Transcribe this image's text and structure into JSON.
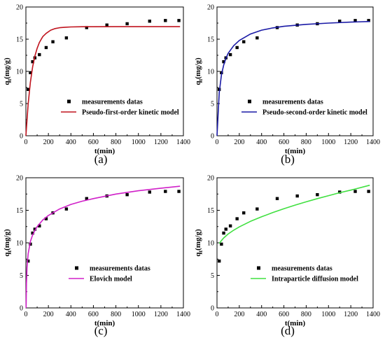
{
  "chart_data": [
    {
      "type": "scatter",
      "panel_label": "(a)",
      "xlabel": "t(min)",
      "ylabel": "q",
      "ylabel_sub": "t",
      "ylabel_unit": "(mg/g)",
      "xlim": [
        0,
        1400
      ],
      "ylim": [
        0,
        20
      ],
      "xticks": [
        "0",
        "200",
        "400",
        "600",
        "800",
        "1000",
        "1200",
        "1400"
      ],
      "yticks": [
        "0",
        "5",
        "10",
        "15",
        "20"
      ],
      "legend_position": "center-right",
      "series": [
        {
          "name": "measurements datas",
          "kind": "points",
          "color": "#000000",
          "x": [
            20,
            40,
            60,
            80,
            120,
            180,
            240,
            360,
            540,
            720,
            900,
            1100,
            1240,
            1360
          ],
          "y": [
            7.2,
            9.8,
            11.5,
            12.1,
            12.6,
            13.7,
            14.6,
            15.2,
            16.8,
            17.2,
            17.4,
            17.8,
            17.9,
            17.9
          ]
        },
        {
          "name": "Pseudo-first-order kinetic model",
          "kind": "line",
          "color": "#c0141e",
          "x": [
            0,
            20,
            40,
            60,
            80,
            100,
            120,
            150,
            180,
            220,
            260,
            300,
            350,
            400,
            500,
            600,
            800,
            1000,
            1200,
            1370
          ],
          "y": [
            0,
            4.9,
            8.3,
            10.7,
            12.4,
            13.6,
            14.5,
            15.4,
            15.9,
            16.4,
            16.65,
            16.78,
            16.86,
            16.9,
            16.93,
            16.94,
            16.95,
            16.95,
            16.95,
            16.95
          ]
        }
      ]
    },
    {
      "type": "scatter",
      "panel_label": "(b)",
      "xlabel": "t(min)",
      "ylabel": "q",
      "ylabel_sub": "t",
      "ylabel_unit": "(mg/g)",
      "xlim": [
        0,
        1400
      ],
      "ylim": [
        0,
        20
      ],
      "xticks": [
        "0",
        "200",
        "400",
        "600",
        "800",
        "1000",
        "1200",
        "1400"
      ],
      "yticks": [
        "0",
        "5",
        "10",
        "15",
        "20"
      ],
      "legend_position": "center-right",
      "series": [
        {
          "name": "measurements datas",
          "kind": "points",
          "color": "#000000",
          "x": [
            20,
            40,
            60,
            80,
            120,
            180,
            240,
            360,
            540,
            720,
            900,
            1100,
            1240,
            1360
          ],
          "y": [
            7.2,
            9.8,
            11.5,
            12.1,
            12.6,
            13.7,
            14.6,
            15.2,
            16.8,
            17.2,
            17.4,
            17.8,
            17.9,
            17.9
          ]
        },
        {
          "name": "Pseudo-second-order kinetic model",
          "kind": "line",
          "color": "#1a1aa6",
          "x": [
            0,
            20,
            40,
            60,
            80,
            100,
            150,
            200,
            300,
            400,
            500,
            600,
            800,
            1000,
            1200,
            1370
          ],
          "y": [
            0,
            6.7,
            9.5,
            11.0,
            12.0,
            12.8,
            14.0,
            14.8,
            15.8,
            16.4,
            16.75,
            17.0,
            17.3,
            17.5,
            17.65,
            17.75
          ]
        }
      ]
    },
    {
      "type": "scatter",
      "panel_label": "(c)",
      "xlabel": "t(min)",
      "ylabel": "q",
      "ylabel_sub": "t",
      "ylabel_unit": "(mg/g)",
      "xlim": [
        0,
        1400
      ],
      "ylim": [
        0,
        20
      ],
      "xticks": [
        "0",
        "200",
        "400",
        "600",
        "800",
        "1000",
        "1200",
        "1400"
      ],
      "yticks": [
        "0",
        "5",
        "10",
        "15",
        "20"
      ],
      "legend_position": "center-right",
      "series": [
        {
          "name": "measurements datas",
          "kind": "points",
          "color": "#000000",
          "x": [
            20,
            40,
            60,
            80,
            120,
            180,
            240,
            360,
            540,
            720,
            900,
            1100,
            1240,
            1360
          ],
          "y": [
            7.2,
            9.8,
            11.5,
            12.1,
            12.6,
            13.7,
            14.6,
            15.2,
            16.8,
            17.2,
            17.4,
            17.8,
            17.9,
            17.9
          ]
        },
        {
          "name": "Elovich model",
          "kind": "line",
          "color": "#d020c8",
          "x": [
            2,
            5,
            10,
            20,
            40,
            60,
            80,
            100,
            150,
            200,
            300,
            400,
            500,
            600,
            800,
            1000,
            1200,
            1370
          ],
          "y": [
            0,
            3.8,
            6.2,
            8.3,
            10.2,
            11.2,
            11.9,
            12.5,
            13.5,
            14.2,
            15.2,
            15.9,
            16.4,
            16.8,
            17.5,
            18.0,
            18.4,
            18.7
          ]
        }
      ]
    },
    {
      "type": "scatter",
      "panel_label": "(d)",
      "xlabel": "t(min)",
      "ylabel": "q",
      "ylabel_sub": "t",
      "ylabel_unit": "(mg/g)",
      "xlim": [
        0,
        1400
      ],
      "ylim": [
        0,
        20
      ],
      "xticks": [
        "0",
        "200",
        "400",
        "600",
        "800",
        "1000",
        "1200",
        "1400"
      ],
      "yticks": [
        "0",
        "5",
        "10",
        "15",
        "20"
      ],
      "legend_position": "center-right",
      "series": [
        {
          "name": "measurements datas",
          "kind": "points",
          "color": "#000000",
          "x": [
            20,
            40,
            60,
            80,
            120,
            180,
            240,
            360,
            540,
            720,
            900,
            1100,
            1240,
            1360
          ],
          "y": [
            7.2,
            9.8,
            11.5,
            12.1,
            12.6,
            13.7,
            14.6,
            15.2,
            16.8,
            17.2,
            17.4,
            17.8,
            17.9,
            17.9
          ]
        },
        {
          "name": "Intraparticle diffusion model",
          "kind": "line",
          "color": "#40e040",
          "x": [
            20,
            40,
            60,
            100,
            150,
            200,
            300,
            400,
            500,
            600,
            700,
            800,
            900,
            1000,
            1100,
            1200,
            1370
          ],
          "y": [
            9.9,
            10.35,
            10.75,
            11.35,
            11.95,
            12.45,
            13.3,
            14.0,
            14.65,
            15.25,
            15.8,
            16.3,
            16.8,
            17.25,
            17.7,
            18.1,
            18.85
          ]
        }
      ]
    }
  ]
}
